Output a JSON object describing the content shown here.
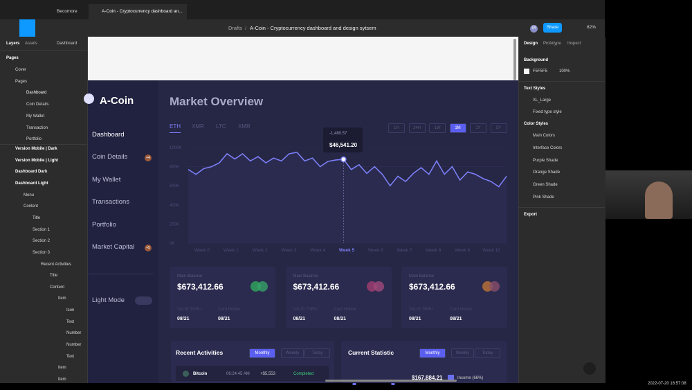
{
  "browser_tabs": [
    "Becomore",
    "A-Coin - Cryptocurrency dashboard an..."
  ],
  "toolbar": {
    "breadcrumb": "Drafts",
    "separator": "/",
    "file": "A-Coin - Cryptocurrency dashboard and design sytsem",
    "avatar": "M",
    "share": "Share",
    "zoom": "82%"
  },
  "left_panel": {
    "tabs": [
      "Layers",
      "Assets"
    ],
    "page_select": "Dashboard",
    "pages_title": "Pages",
    "pages": [
      "Cover",
      "Pages",
      "Dashboard",
      "Coin Details",
      "My Wallet",
      "Transaction",
      "Portfolio"
    ],
    "layers": [
      "Version Mobile | Dark",
      "Version Mobile | Light",
      "Dashboard Dark",
      "Dashboard Light",
      "Menu",
      "Content",
      "Title",
      "Section 1",
      "Section 2",
      "Section 3",
      "Recent Activities",
      "Title",
      "Content",
      "Item",
      "Icon",
      "Text",
      "Number",
      "Number",
      "Text",
      "Item",
      "Item"
    ]
  },
  "right_panel": {
    "tabs": [
      "Design",
      "Prototype",
      "Inspect"
    ],
    "background_title": "Background",
    "background_color": "F5F5F5",
    "background_opacity": "100%",
    "text_styles_title": "Text Styles",
    "text_styles": [
      "XL_Large",
      "Fixed type style"
    ],
    "color_styles_title": "Color Styles",
    "color_styles": [
      "Main Colors",
      "Interface Colors",
      "Purple Shade",
      "Orange Shade",
      "Green Shade",
      "Pink Shade"
    ],
    "export": "Export"
  },
  "design": {
    "logo": "A-Coin",
    "nav": [
      "Dashboard",
      "Coin Details",
      "My Wallet",
      "Transactions",
      "Portfolio",
      "Market Capital"
    ],
    "nav_badges": [
      "+4",
      "+5"
    ],
    "light_mode": "Light Mode",
    "title": "Market Overview",
    "coin_tabs": [
      "ETH",
      "XMR",
      "LTC",
      "XMR"
    ],
    "ranges": [
      "1H",
      "24H",
      "1W",
      "1M",
      "1Y",
      "5Y"
    ],
    "tooltip_change": "-1,480.57",
    "tooltip_price": "$46,541.20",
    "weeks": [
      "Week 0",
      "Week 1",
      "Week 2",
      "Week 3",
      "Week 4",
      "Week 5",
      "Week 6",
      "Week 7",
      "Week 8",
      "Week 9",
      "Week 10"
    ],
    "cards": [
      {
        "title": "Main Balance",
        "amount": "$673,412.66",
        "valid_label": "VALID THRU",
        "holder_label": "Card Holder",
        "valid": "08/21",
        "holder": "08/21"
      },
      {
        "title": "Main Balance",
        "amount": "$673,412.66",
        "valid_label": "VALID THRU",
        "holder_label": "Card Holder",
        "valid": "08/21",
        "holder": "08/21"
      },
      {
        "title": "Main Balance",
        "amount": "$673,412.66",
        "valid_label": "VALID THRU",
        "holder_label": "Card Holder",
        "valid": "08/21",
        "holder": "08/21"
      }
    ],
    "recent_title": "Recent Activities",
    "period_tabs": [
      "Monthly",
      "Weekly",
      "Today"
    ],
    "activity": {
      "coin": "Bitcoin",
      "time": "06:24:45 AM",
      "amount": "+$5,553",
      "status": "Completed"
    },
    "statistic_title": "Current Statistic",
    "statistic_total": "$167,884.21",
    "statistic_legend": "Income (66%)"
  },
  "market_chart": {
    "type": "line",
    "color": "#7b7ff5",
    "ylim": [
      0,
      1000
    ],
    "yticks": [
      {
        "value": 1000,
        "label": "1000K"
      },
      {
        "value": 800,
        "label": "800K"
      },
      {
        "value": 600,
        "label": "600K"
      },
      {
        "value": 400,
        "label": "400K"
      },
      {
        "value": 200,
        "label": "200K"
      },
      {
        "value": 0,
        "label": "0K"
      }
    ],
    "values": [
      770,
      720,
      780,
      800,
      840,
      935,
      880,
      935,
      860,
      905,
      840,
      890,
      860,
      935,
      950,
      860,
      890,
      800,
      855,
      870,
      877,
      770,
      820,
      730,
      800,
      720,
      600,
      700,
      645,
      730,
      790,
      720,
      860,
      720,
      800,
      660,
      745,
      720,
      675,
      645,
      590,
      700
    ]
  },
  "timestamp": "2022-07-20 16:57:08"
}
